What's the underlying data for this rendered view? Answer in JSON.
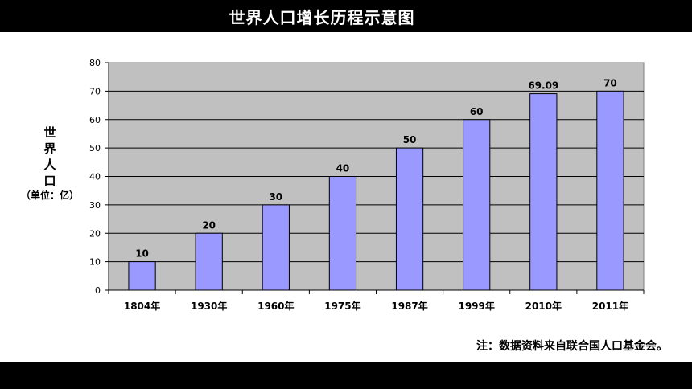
{
  "page": {
    "title": "世界人口增长历程示意图",
    "note": "注：数据资料来自联合国人口基金会。"
  },
  "colors": {
    "plot_bg": "#c0c0c0",
    "bar_fill": "#9999ff",
    "bar_stroke": "#000000",
    "grid": "#000000"
  },
  "chart_data": {
    "type": "bar",
    "title": "世界人口增长历程示意图",
    "ylabel": "世界人口",
    "yunit": "（单位：亿）",
    "xlabel": "",
    "categories": [
      "1804年",
      "1930年",
      "1960年",
      "1975年",
      "1987年",
      "1999年",
      "2010年",
      "2011年"
    ],
    "values": [
      10,
      20,
      30,
      40,
      50,
      60,
      69.09,
      70
    ],
    "data_labels": [
      "10",
      "20",
      "30",
      "40",
      "50",
      "60",
      "69.09",
      "70"
    ],
    "ylim": [
      0,
      80
    ],
    "yticks": [
      0,
      10,
      20,
      30,
      40,
      50,
      60,
      70,
      80
    ],
    "grid": true,
    "legend": "none"
  }
}
